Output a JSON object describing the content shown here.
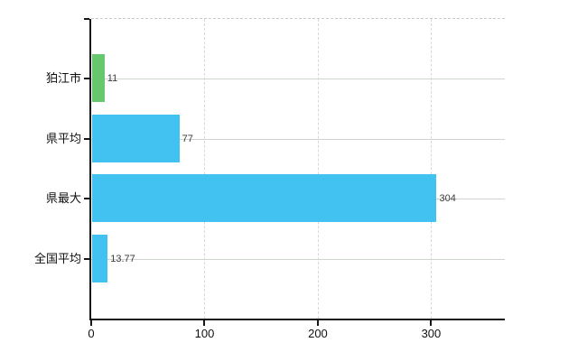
{
  "chart_data": {
    "type": "bar",
    "orientation": "horizontal",
    "title": "",
    "xlabel": "",
    "ylabel": "",
    "categories": [
      "狛江市",
      "県平均",
      "県最大",
      "全国平均"
    ],
    "values": [
      11,
      77,
      304,
      13.77
    ],
    "value_labels": [
      "11",
      "77",
      "304",
      "13.77"
    ],
    "bar_colors": [
      "#67c76f",
      "#41c2f1",
      "#41c2f1",
      "#41c2f1"
    ],
    "x_ticks": [
      0,
      100,
      200,
      300
    ],
    "x_tick_labels": [
      "0",
      "100",
      "200",
      "300"
    ],
    "xlim": [
      0,
      365
    ],
    "grid": true,
    "legend_position": "none",
    "colors": {
      "bar_green": "#67c76f",
      "bar_blue": "#41c2f1",
      "axis": "#161616",
      "grid_horizontal": "#cdd5cc",
      "grid_vertical": "#d7d7de",
      "plot_top_border": "#c9c9c9",
      "category_text": "#111111",
      "value_text": "#3a3a3a",
      "background": "#ffffff"
    }
  }
}
